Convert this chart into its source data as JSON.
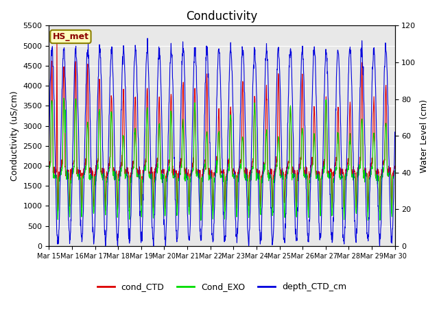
{
  "title": "Conductivity",
  "ylabel_left": "Conductivity (uS/cm)",
  "ylabel_right": "Water Level (cm)",
  "ylim_left": [
    0,
    5500
  ],
  "ylim_right": [
    0,
    120
  ],
  "yticks_left": [
    0,
    500,
    1000,
    1500,
    2000,
    2500,
    3000,
    3500,
    4000,
    4500,
    5000,
    5500
  ],
  "yticks_right": [
    0,
    20,
    40,
    60,
    80,
    100,
    120
  ],
  "xtick_labels": [
    "Mar 15",
    "Mar 16",
    "Mar 17",
    "Mar 18",
    "Mar 19",
    "Mar 20",
    "Mar 21",
    "Mar 22",
    "Mar 23",
    "Mar 24",
    "Mar 25",
    "Mar 26",
    "Mar 27",
    "Mar 28",
    "Mar 29",
    "Mar 30"
  ],
  "legend_labels": [
    "cond_CTD",
    "Cond_EXO",
    "depth_CTD_cm"
  ],
  "legend_colors": [
    "#dd0000",
    "#00dd00",
    "#0000dd"
  ],
  "station_label": "HS_met",
  "bg_color": "#e8e8e8",
  "fig_bg": "#ffffff",
  "grid_color": "#ffffff",
  "title_fontsize": 12,
  "tidal_period_days": 0.517,
  "n_days": 15,
  "samples_per_day": 96
}
